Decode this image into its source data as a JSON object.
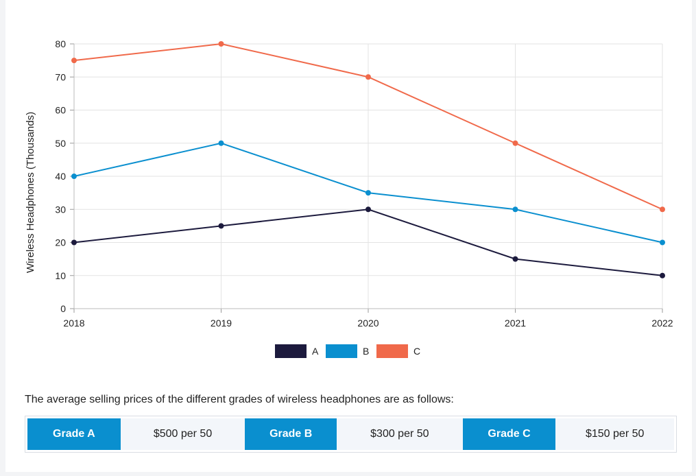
{
  "chart_data": {
    "type": "line",
    "categories": [
      "2018",
      "2019",
      "2020",
      "2021",
      "2022"
    ],
    "series": [
      {
        "name": "A",
        "color": "#1c1a3d",
        "values": [
          20,
          25,
          30,
          15,
          10
        ]
      },
      {
        "name": "B",
        "color": "#0a8fcf",
        "values": [
          40,
          50,
          35,
          30,
          20
        ]
      },
      {
        "name": "C",
        "color": "#f0694a",
        "values": [
          75,
          80,
          70,
          50,
          30
        ]
      }
    ],
    "ylabel": "Wireless Headphones (Thousands)",
    "xlabel": "",
    "ylim": [
      0,
      80
    ],
    "yticks": [
      0,
      10,
      20,
      30,
      40,
      50,
      60,
      70,
      80
    ],
    "grid": true,
    "legend_position": "bottom-center"
  },
  "note": "The average selling prices of the different grades of wireless headphones are as follows:",
  "prices": [
    {
      "grade": "Grade A",
      "price": "$500 per 50"
    },
    {
      "grade": "Grade B",
      "price": "$300 per 50"
    },
    {
      "grade": "Grade C",
      "price": "$150 per 50"
    }
  ],
  "colors": {
    "grade_header": "#0a8fcf",
    "price_bg": "#f3f6fa",
    "grid": "#e3e3e3"
  }
}
